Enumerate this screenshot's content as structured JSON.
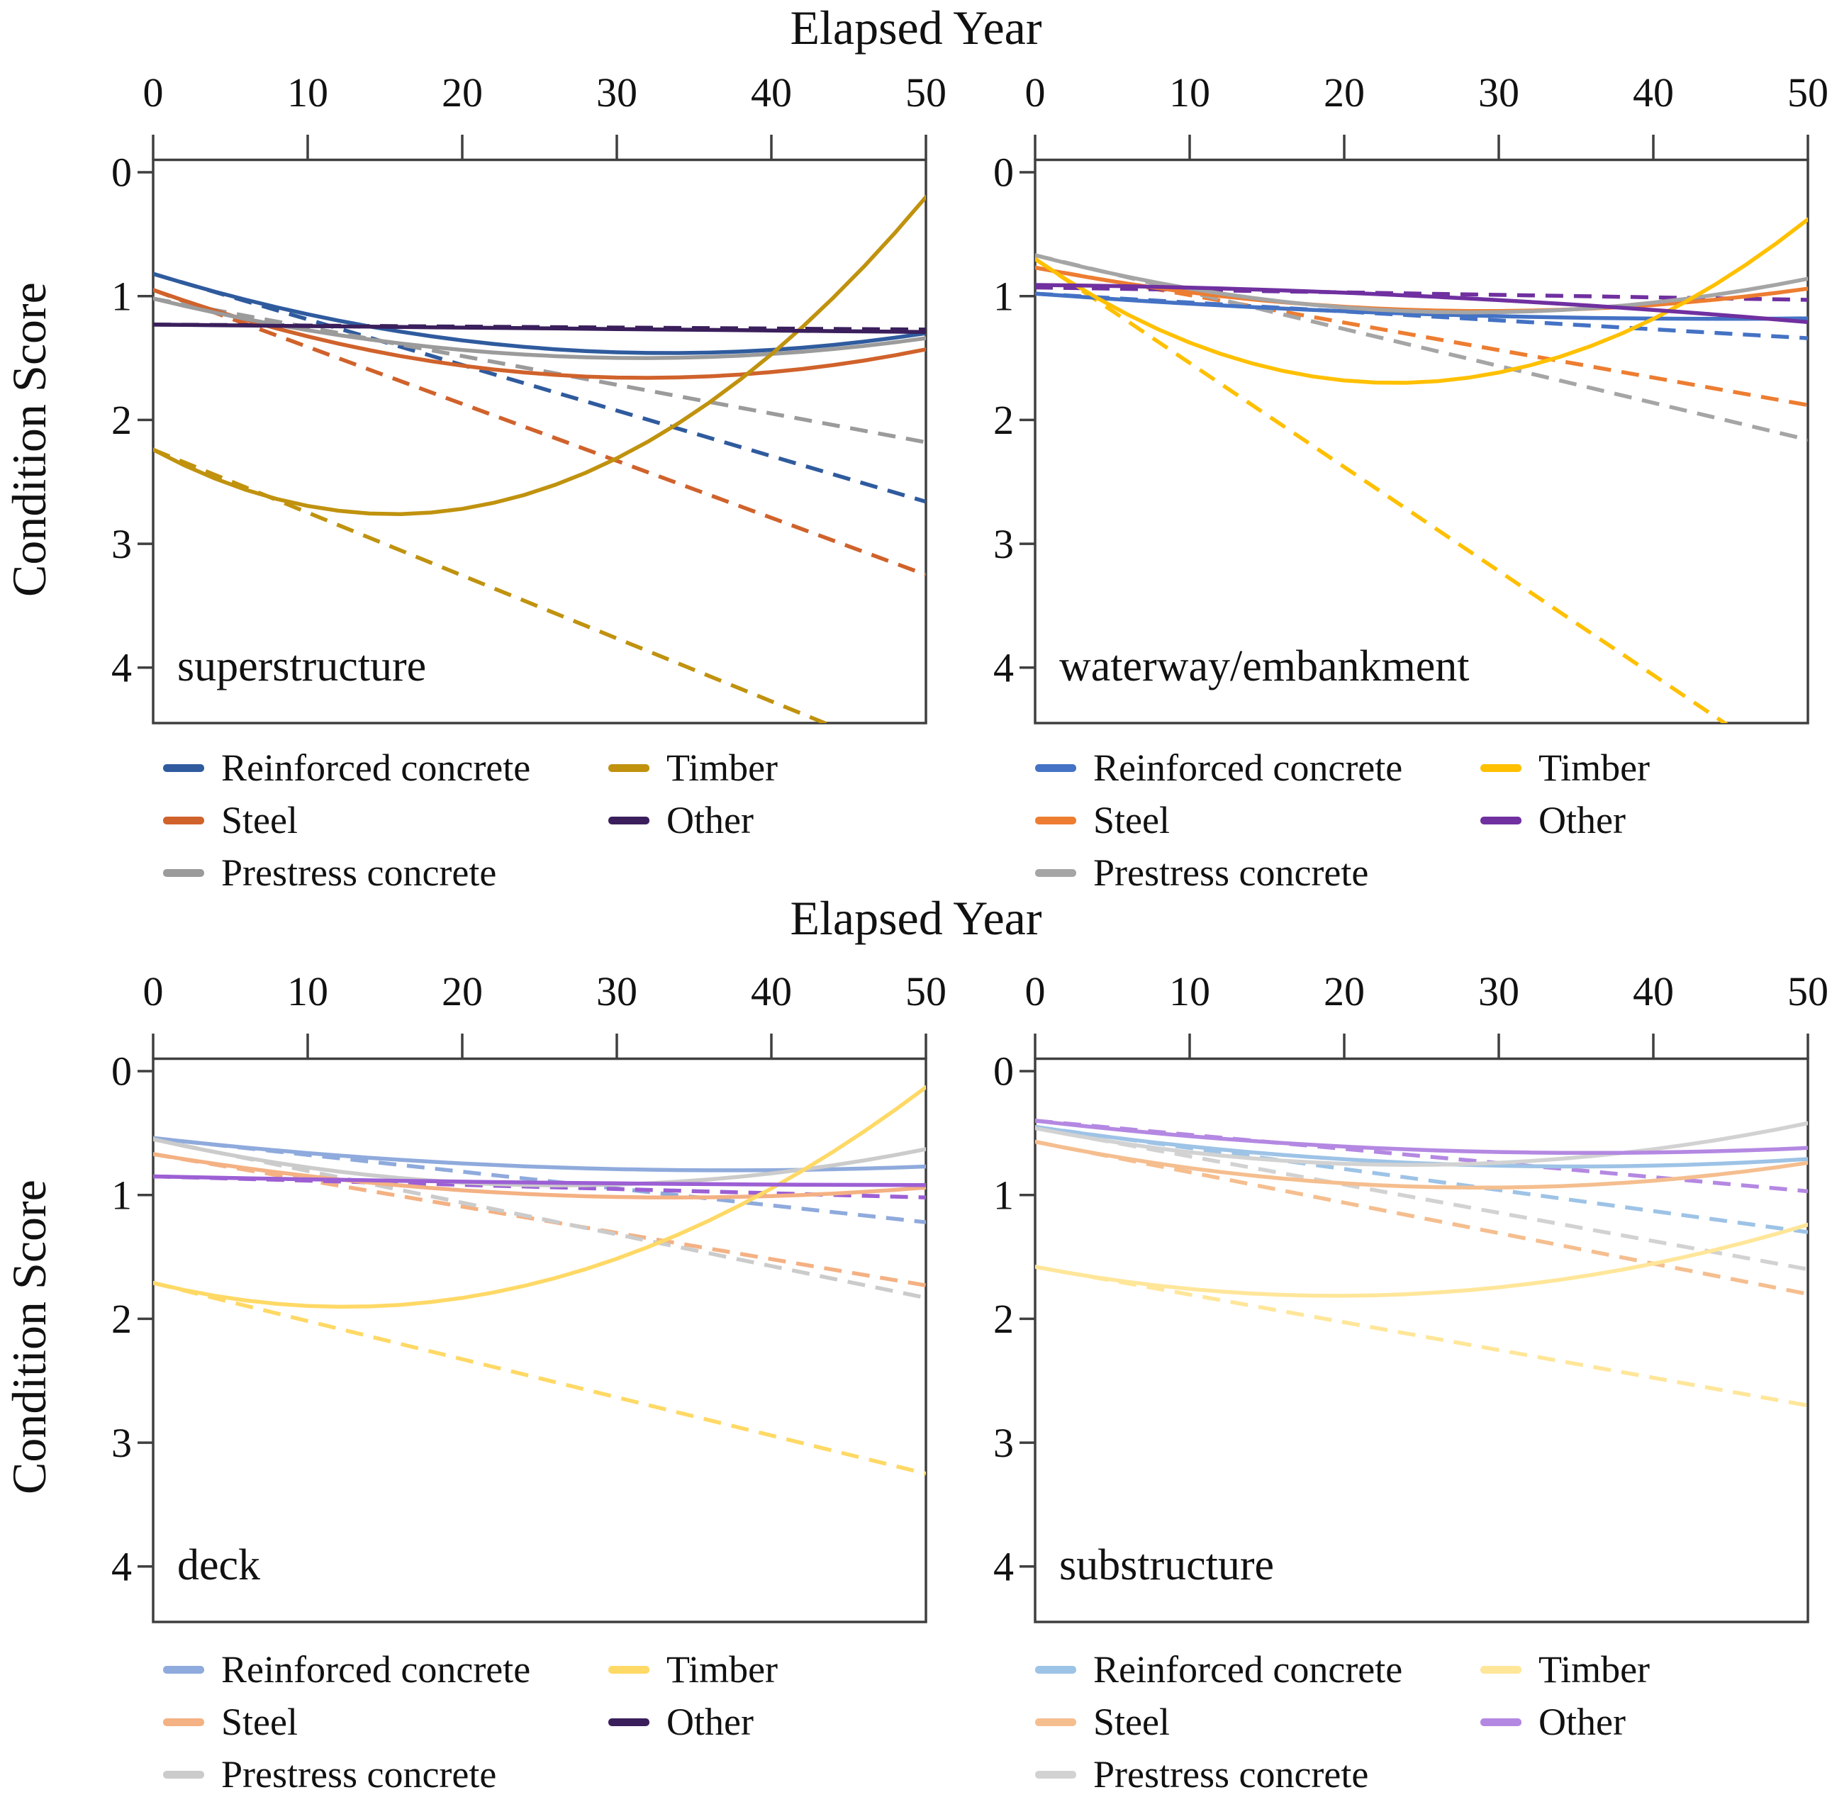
{
  "titles": {
    "x_axis_top": "Elapsed Year",
    "x_axis_bottom": "Elapsed Year",
    "y_axis_top": "Condition Score",
    "y_axis_bottom": "Condition Score"
  },
  "axis_style": {
    "line_color": "#3f3f3f",
    "text_color": "#111111"
  },
  "chart_data": [
    {
      "type": "line",
      "panel": "superstructure",
      "xlabel": "Elapsed Year",
      "ylabel": "Condition Score",
      "xlim": [
        0,
        50
      ],
      "ylim": [
        0,
        4.45
      ],
      "y_inverted": true,
      "x_ticks": [
        0,
        10,
        20,
        30,
        40,
        50
      ],
      "y_ticks": [
        0,
        1,
        2,
        3,
        4
      ],
      "legend_cols": [
        [
          0,
          1,
          2
        ],
        [
          3,
          4
        ]
      ],
      "series": [
        {
          "name": "Reinforced concrete",
          "color": "#2F5B9E",
          "solid": [
            [
              0,
              0.82
            ],
            [
              33,
              1.46
            ],
            [
              50,
              1.3
            ]
          ],
          "dashed": [
            [
              0,
              0.82
            ],
            [
              50,
              2.66
            ]
          ]
        },
        {
          "name": "Steel",
          "color": "#D0622B",
          "solid": [
            [
              0,
              0.95
            ],
            [
              32,
              1.66
            ],
            [
              50,
              1.43
            ]
          ],
          "dashed": [
            [
              0,
              0.95
            ],
            [
              50,
              3.25
            ]
          ]
        },
        {
          "name": "Prestress concrete",
          "color": "#9B9B9B",
          "solid": [
            [
              0,
              1.02
            ],
            [
              31,
              1.5
            ],
            [
              50,
              1.34
            ]
          ],
          "dashed": [
            [
              0,
              1.02
            ],
            [
              50,
              2.18
            ]
          ]
        },
        {
          "name": "Timber",
          "color": "#C0920E",
          "solid": [
            [
              0,
              2.24
            ],
            [
              16,
              2.76
            ],
            [
              50,
              0.2
            ]
          ],
          "dashed": [
            [
              0,
              2.24
            ],
            [
              50,
              4.78
            ]
          ]
        },
        {
          "name": "Other",
          "color": "#3A1F5C",
          "solid": [
            [
              0,
              1.23
            ],
            [
              25,
              1.26
            ],
            [
              50,
              1.29
            ]
          ],
          "dashed": [
            [
              0,
              1.23
            ],
            [
              50,
              1.27
            ]
          ]
        }
      ]
    },
    {
      "type": "line",
      "panel": "waterway/embankment",
      "xlabel": "Elapsed Year",
      "ylabel": "Condition Score",
      "xlim": [
        0,
        50
      ],
      "ylim": [
        0,
        4.45
      ],
      "y_inverted": true,
      "x_ticks": [
        0,
        10,
        20,
        30,
        40,
        50
      ],
      "y_ticks": [
        0,
        1,
        2,
        3,
        4
      ],
      "legend_cols": [
        [
          0,
          1,
          2
        ],
        [
          3,
          4
        ]
      ],
      "series": [
        {
          "name": "Reinforced concrete",
          "color": "#4472C4",
          "solid": [
            [
              0,
              0.98
            ],
            [
              33,
              1.17
            ],
            [
              50,
              1.18
            ]
          ],
          "dashed": [
            [
              0,
              0.98
            ],
            [
              50,
              1.34
            ]
          ]
        },
        {
          "name": "Steel",
          "color": "#ED7D31",
          "solid": [
            [
              0,
              0.77
            ],
            [
              28,
              1.12
            ],
            [
              50,
              0.94
            ]
          ],
          "dashed": [
            [
              0,
              0.77
            ],
            [
              50,
              1.88
            ]
          ]
        },
        {
          "name": "Prestress concrete",
          "color": "#A5A5A5",
          "solid": [
            [
              0,
              0.67
            ],
            [
              30,
              1.13
            ],
            [
              50,
              0.86
            ]
          ],
          "dashed": [
            [
              0,
              0.67
            ],
            [
              50,
              2.16
            ]
          ]
        },
        {
          "name": "Timber",
          "color": "#FFC000",
          "solid": [
            [
              0,
              0.7
            ],
            [
              24,
              1.7
            ],
            [
              50,
              0.38
            ]
          ],
          "dashed": [
            [
              0,
              0.7
            ],
            [
              50,
              4.9
            ]
          ]
        },
        {
          "name": "Other",
          "color": "#7030A0",
          "solid": [
            [
              0,
              0.91
            ],
            [
              25,
              1.0
            ],
            [
              50,
              1.21
            ]
          ],
          "dashed": [
            [
              0,
              0.93
            ],
            [
              50,
              1.03
            ]
          ]
        }
      ]
    },
    {
      "type": "line",
      "panel": "deck",
      "xlabel": "Elapsed Year",
      "ylabel": "Condition Score",
      "xlim": [
        0,
        50
      ],
      "ylim": [
        0,
        4.45
      ],
      "y_inverted": true,
      "x_ticks": [
        0,
        10,
        20,
        30,
        40,
        50
      ],
      "y_ticks": [
        0,
        1,
        2,
        3,
        4
      ],
      "legend_cols": [
        [
          0,
          1,
          2
        ],
        [
          3,
          4
        ]
      ],
      "series": [
        {
          "name": "Reinforced concrete",
          "color": "#8FAADC",
          "solid": [
            [
              0,
              0.54
            ],
            [
              35,
              0.8
            ],
            [
              50,
              0.77
            ]
          ],
          "dashed": [
            [
              0,
              0.54
            ],
            [
              50,
              1.22
            ]
          ]
        },
        {
          "name": "Steel",
          "color": "#F4B183",
          "solid": [
            [
              0,
              0.67
            ],
            [
              35,
              1.02
            ],
            [
              50,
              0.94
            ]
          ],
          "dashed": [
            [
              0,
              0.67
            ],
            [
              50,
              1.73
            ]
          ]
        },
        {
          "name": "Prestress concrete",
          "color": "#CBCBCB",
          "solid": [
            [
              0,
              0.55
            ],
            [
              33,
              0.9
            ],
            [
              50,
              0.63
            ]
          ],
          "dashed": [
            [
              0,
              0.55
            ],
            [
              50,
              1.83
            ]
          ]
        },
        {
          "name": "Timber",
          "color": "#FFD966",
          "solid": [
            [
              0,
              1.71
            ],
            [
              14,
              1.9
            ],
            [
              50,
              0.13
            ]
          ],
          "dashed": [
            [
              0,
              1.71
            ],
            [
              50,
              3.25
            ]
          ]
        },
        {
          "name": "Other",
          "color": "#9C5FD4",
          "legend_color": "#3A1F5C",
          "solid": [
            [
              0,
              0.85
            ],
            [
              25,
              0.9
            ],
            [
              50,
              0.92
            ]
          ],
          "dashed": [
            [
              0,
              0.85
            ],
            [
              50,
              1.02
            ]
          ]
        }
      ]
    },
    {
      "type": "line",
      "panel": "substructure",
      "xlabel": "Elapsed Year",
      "ylabel": "Condition Score",
      "xlim": [
        0,
        50
      ],
      "ylim": [
        0,
        4.45
      ],
      "y_inverted": true,
      "x_ticks": [
        0,
        10,
        20,
        30,
        40,
        50
      ],
      "y_ticks": [
        0,
        1,
        2,
        3,
        4
      ],
      "legend_cols": [
        [
          0,
          1,
          2
        ],
        [
          3,
          4
        ]
      ],
      "series": [
        {
          "name": "Reinforced concrete",
          "color": "#9DC3E6",
          "solid": [
            [
              0,
              0.45
            ],
            [
              35,
              0.77
            ],
            [
              50,
              0.71
            ]
          ],
          "dashed": [
            [
              0,
              0.45
            ],
            [
              50,
              1.3
            ]
          ]
        },
        {
          "name": "Steel",
          "color": "#F5BE8F",
          "solid": [
            [
              0,
              0.57
            ],
            [
              30,
              0.94
            ],
            [
              50,
              0.74
            ]
          ],
          "dashed": [
            [
              0,
              0.57
            ],
            [
              50,
              1.8
            ]
          ]
        },
        {
          "name": "Prestress concrete",
          "color": "#D2D2D2",
          "solid": [
            [
              0,
              0.46
            ],
            [
              30,
              0.74
            ],
            [
              50,
              0.42
            ]
          ],
          "dashed": [
            [
              0,
              0.46
            ],
            [
              50,
              1.6
            ]
          ]
        },
        {
          "name": "Timber",
          "color": "#FFE699",
          "solid": [
            [
              0,
              1.58
            ],
            [
              22,
              1.81
            ],
            [
              50,
              1.24
            ]
          ],
          "dashed": [
            [
              0,
              1.58
            ],
            [
              50,
              2.7
            ]
          ]
        },
        {
          "name": "Other",
          "color": "#B488E2",
          "solid": [
            [
              0,
              0.4
            ],
            [
              35,
              0.66
            ],
            [
              50,
              0.62
            ]
          ],
          "dashed": [
            [
              0,
              0.4
            ],
            [
              50,
              0.97
            ]
          ]
        }
      ]
    }
  ]
}
